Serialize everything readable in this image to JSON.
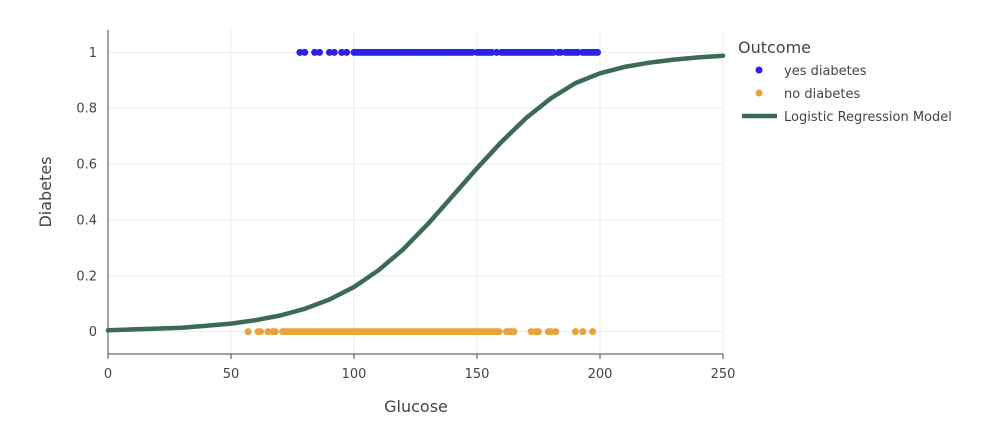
{
  "chart_data": {
    "type": "scatter",
    "title": "",
    "xlabel": "Glucose",
    "ylabel": "Diabetes",
    "xlim": [
      0,
      250
    ],
    "ylim": [
      -0.08,
      1.08
    ],
    "xticks": [
      0,
      50,
      100,
      150,
      200,
      250
    ],
    "xtick_labels": [
      "0",
      "50",
      "100",
      "150",
      "200",
      "250"
    ],
    "yticks": [
      0,
      0.2,
      0.4,
      0.6,
      0.8,
      1
    ],
    "ytick_labels": [
      "0",
      "0.2",
      "0.4",
      "0.6",
      "0.8",
      "1"
    ],
    "grid": true,
    "legend": {
      "title": "Outcome",
      "position": "top-right-outside",
      "entries": [
        "yes diabetes",
        "no diabetes",
        "Logistic Regression Model"
      ]
    },
    "series": [
      {
        "name": "yes diabetes",
        "kind": "scatter",
        "color": "#2b22e6",
        "y": 1,
        "x": [
          78,
          80,
          84,
          86,
          90,
          92,
          95,
          97,
          100,
          101,
          102,
          103,
          104,
          105,
          106,
          107,
          108,
          109,
          110,
          111,
          112,
          113,
          114,
          115,
          116,
          117,
          118,
          119,
          120,
          121,
          122,
          123,
          124,
          125,
          126,
          127,
          128,
          129,
          130,
          131,
          132,
          133,
          134,
          135,
          136,
          137,
          138,
          139,
          140,
          141,
          142,
          143,
          144,
          145,
          146,
          147,
          148,
          150,
          151,
          152,
          153,
          154,
          155,
          156,
          158,
          160,
          161,
          162,
          163,
          164,
          165,
          166,
          167,
          168,
          169,
          170,
          171,
          172,
          173,
          174,
          175,
          176,
          177,
          178,
          179,
          180,
          181,
          183,
          184,
          186,
          187,
          188,
          189,
          190,
          191,
          193,
          194,
          195,
          196,
          197,
          198,
          199
        ]
      },
      {
        "name": "no diabetes",
        "kind": "scatter",
        "color": "#e8a33d",
        "y": 0,
        "x": [
          57,
          61,
          62,
          65,
          67,
          68,
          71,
          72,
          73,
          74,
          75,
          76,
          77,
          78,
          79,
          80,
          81,
          82,
          83,
          84,
          85,
          86,
          87,
          88,
          89,
          90,
          91,
          92,
          93,
          94,
          95,
          96,
          97,
          98,
          99,
          100,
          101,
          102,
          103,
          104,
          105,
          106,
          107,
          108,
          109,
          110,
          111,
          112,
          113,
          114,
          115,
          116,
          117,
          118,
          119,
          120,
          121,
          122,
          123,
          124,
          125,
          126,
          127,
          128,
          129,
          130,
          131,
          132,
          133,
          134,
          135,
          136,
          137,
          138,
          139,
          140,
          141,
          142,
          143,
          144,
          145,
          146,
          147,
          148,
          149,
          150,
          151,
          152,
          153,
          154,
          155,
          156,
          157,
          158,
          159,
          162,
          163,
          164,
          165,
          172,
          174,
          175,
          179,
          180,
          182,
          190,
          193,
          197
        ]
      },
      {
        "name": "Logistic Regression Model",
        "kind": "line",
        "color": "#3b6b52",
        "x": [
          0,
          10,
          20,
          30,
          40,
          50,
          60,
          70,
          80,
          90,
          100,
          110,
          120,
          130,
          140,
          150,
          160,
          170,
          180,
          190,
          200,
          210,
          220,
          230,
          240,
          250
        ],
        "y": [
          0.005,
          0.008,
          0.011,
          0.014,
          0.021,
          0.029,
          0.041,
          0.058,
          0.082,
          0.115,
          0.16,
          0.22,
          0.295,
          0.385,
          0.485,
          0.585,
          0.68,
          0.765,
          0.835,
          0.89,
          0.925,
          0.948,
          0.963,
          0.974,
          0.982,
          0.988
        ]
      }
    ]
  }
}
